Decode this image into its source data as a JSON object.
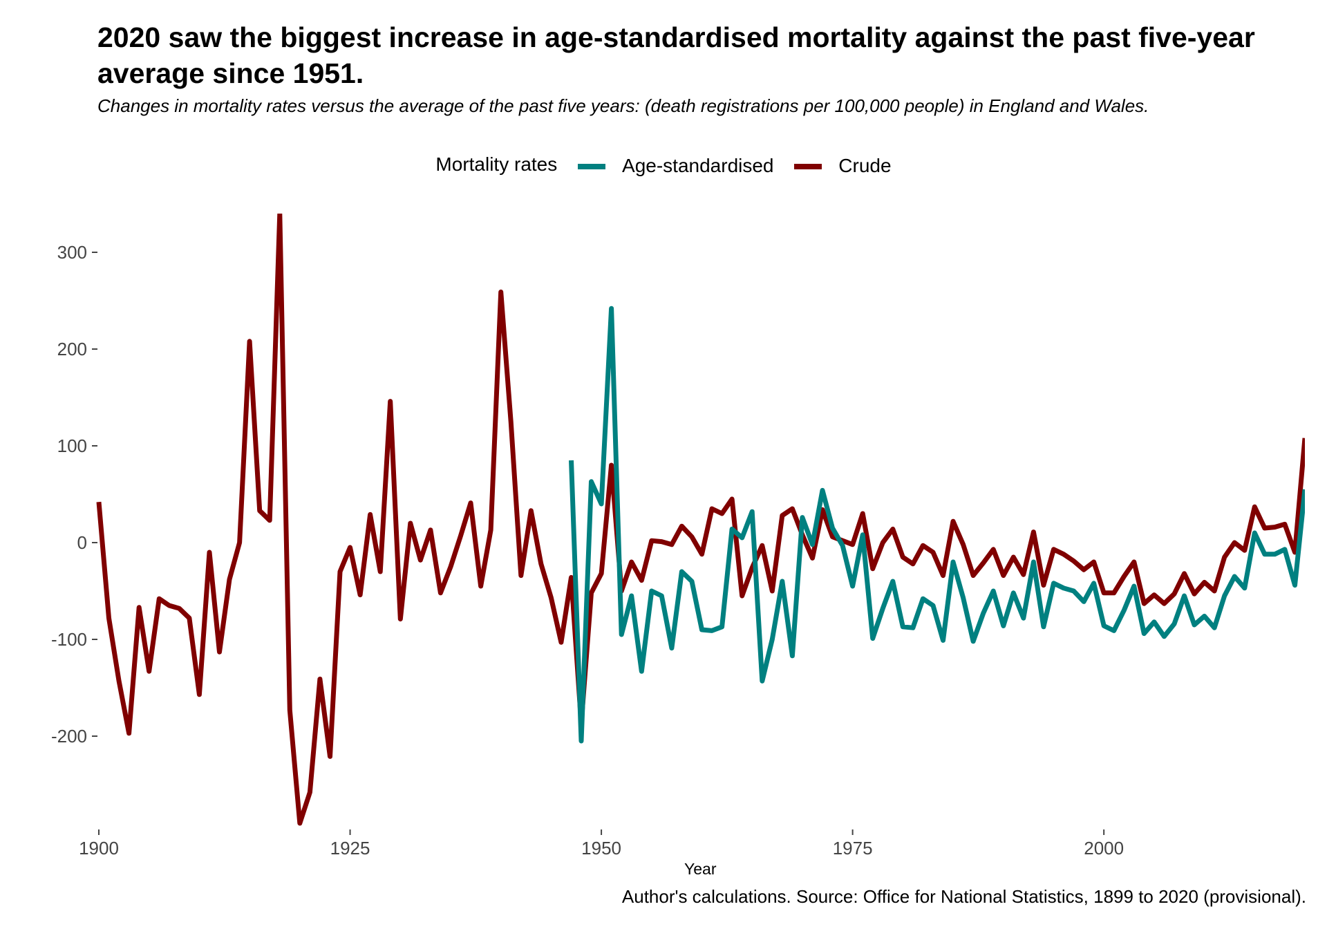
{
  "title": "2020 saw the biggest increase in age-standardised mortality against the past five-year average since 1951.",
  "subtitle": "Changes in mortality rates versus the average of the past five years: (death registrations per 100,000 people) in England and Wales.",
  "caption": "Author's calculations. Source: Office for National Statistics, 1899 to 2020 (provisional).",
  "legend": {
    "title": "Mortality rates"
  },
  "chart_data": {
    "type": "line",
    "xlabel": "Year",
    "ylabel": "",
    "xlim": [
      1900,
      2020
    ],
    "ylim": [
      -295,
      340
    ],
    "x_ticks": [
      1900,
      1925,
      1950,
      1975,
      2000
    ],
    "y_ticks": [
      300,
      200,
      100,
      0,
      -100,
      -200
    ],
    "y_tick_labels": [
      "300",
      "200",
      "100",
      "0",
      "-100",
      "-200"
    ],
    "grid": false,
    "legend_position": "top",
    "series": [
      {
        "name": "Age-standardised",
        "color": "#008080",
        "x": [
          1947,
          1948,
          1949,
          1950,
          1951,
          1952,
          1953,
          1954,
          1955,
          1956,
          1957,
          1958,
          1959,
          1960,
          1961,
          1962,
          1963,
          1964,
          1965,
          1966,
          1967,
          1968,
          1969,
          1970,
          1971,
          1972,
          1973,
          1974,
          1975,
          1976,
          1977,
          1978,
          1979,
          1980,
          1981,
          1982,
          1983,
          1984,
          1985,
          1986,
          1987,
          1988,
          1989,
          1990,
          1991,
          1992,
          1993,
          1994,
          1995,
          1996,
          1997,
          1998,
          1999,
          2000,
          2001,
          2002,
          2003,
          2004,
          2005,
          2006,
          2007,
          2008,
          2009,
          2010,
          2011,
          2012,
          2013,
          2014,
          2015,
          2016,
          2017,
          2018,
          2019,
          2020
        ],
        "values": [
          85,
          -205,
          63,
          40,
          242,
          -95,
          -55,
          -133,
          -50,
          -55,
          -109,
          -30,
          -40,
          -90,
          -91,
          -87,
          14,
          5,
          32,
          -143,
          -100,
          -40,
          -117,
          26,
          -2,
          54,
          15,
          -3,
          -45,
          8,
          -99,
          -68,
          -40,
          -87,
          -88,
          -58,
          -65,
          -101,
          -20,
          -57,
          -102,
          -73,
          -50,
          -86,
          -52,
          -78,
          -20,
          -87,
          -42,
          -47,
          -50,
          -61,
          -42,
          -86,
          -91,
          -70,
          -45,
          -94,
          -82,
          -97,
          -84,
          -55,
          -85,
          -76,
          -88,
          -55,
          -35,
          -47,
          10,
          -12,
          -12,
          -7,
          -44,
          55
        ]
      },
      {
        "name": "Crude",
        "color": "#800000",
        "x": [
          1900,
          1901,
          1902,
          1903,
          1904,
          1905,
          1906,
          1907,
          1908,
          1909,
          1910,
          1911,
          1912,
          1913,
          1914,
          1915,
          1916,
          1917,
          1918,
          1919,
          1920,
          1921,
          1922,
          1923,
          1924,
          1925,
          1926,
          1927,
          1928,
          1929,
          1930,
          1931,
          1932,
          1933,
          1934,
          1935,
          1936,
          1937,
          1938,
          1939,
          1940,
          1941,
          1942,
          1943,
          1944,
          1945,
          1946,
          1947,
          1948,
          1949,
          1950,
          1951,
          1952,
          1953,
          1954,
          1955,
          1956,
          1957,
          1958,
          1959,
          1960,
          1961,
          1962,
          1963,
          1964,
          1965,
          1966,
          1967,
          1968,
          1969,
          1970,
          1971,
          1972,
          1973,
          1974,
          1975,
          1976,
          1977,
          1978,
          1979,
          1980,
          1981,
          1982,
          1983,
          1984,
          1985,
          1986,
          1987,
          1988,
          1989,
          1990,
          1991,
          1992,
          1993,
          1994,
          1995,
          1996,
          1997,
          1998,
          1999,
          2000,
          2001,
          2002,
          2003,
          2004,
          2005,
          2006,
          2007,
          2008,
          2009,
          2010,
          2011,
          2012,
          2013,
          2014,
          2015,
          2016,
          2017,
          2018,
          2019,
          2020
        ],
        "values": [
          42,
          -78,
          -143,
          -197,
          -67,
          -133,
          -58,
          -65,
          -68,
          -78,
          -157,
          -10,
          -113,
          -38,
          0,
          208,
          33,
          23,
          340,
          -173,
          -290,
          -258,
          -141,
          -221,
          -30,
          -5,
          -54,
          29,
          -30,
          146,
          -79,
          20,
          -18,
          13,
          -52,
          -25,
          7,
          41,
          -45,
          13,
          259,
          125,
          -34,
          33,
          -22,
          -57,
          -103,
          -36,
          -187,
          -52,
          -32,
          80,
          -50,
          -20,
          -39,
          2,
          1,
          -2,
          17,
          6,
          -12,
          35,
          30,
          45,
          -55,
          -26,
          -3,
          -50,
          28,
          35,
          8,
          -16,
          34,
          6,
          2,
          -2,
          30,
          -27,
          0,
          14,
          -15,
          -22,
          -3,
          -10,
          -34,
          22,
          -2,
          -34,
          -21,
          -7,
          -34,
          -15,
          -33,
          11,
          -44,
          -7,
          -12,
          -19,
          -28,
          -20,
          -52,
          -52,
          -35,
          -20,
          -63,
          -54,
          -63,
          -53,
          -32,
          -53,
          -41,
          -50,
          -15,
          0,
          -8,
          37,
          15,
          16,
          19,
          -10,
          108
        ]
      }
    ]
  }
}
